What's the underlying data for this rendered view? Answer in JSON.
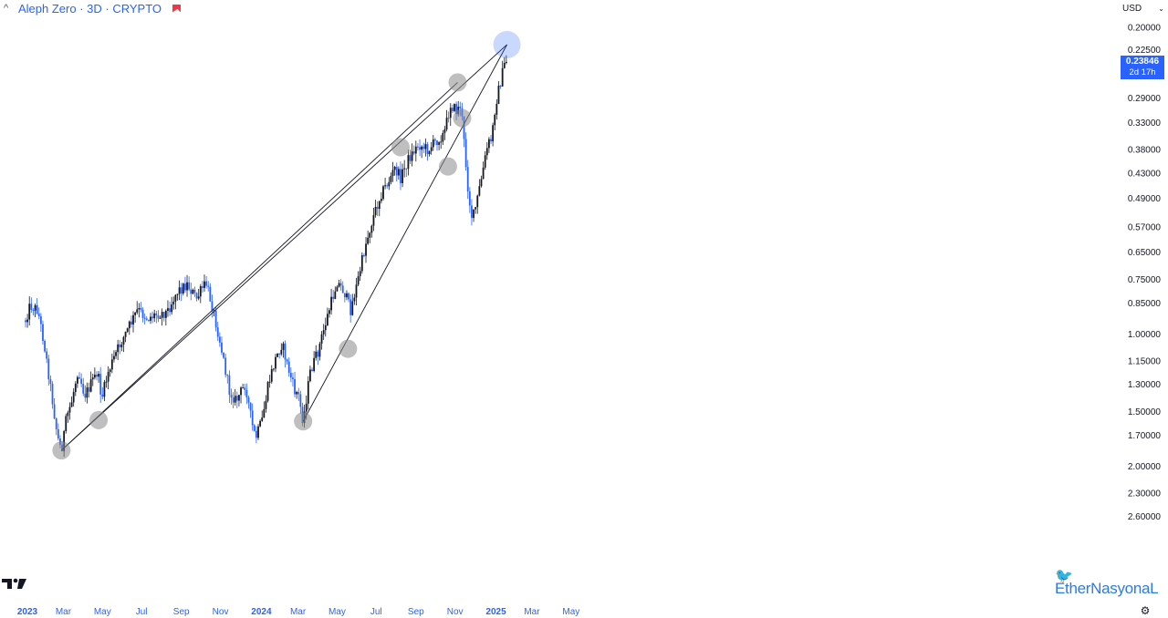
{
  "header": {
    "title": "Aleph Zero · 3D · CRYPTO",
    "currency": "USD",
    "current_price": "0.23846",
    "countdown": "2d 17h",
    "accent_color": "#2962ff",
    "flag_color": "#f23645"
  },
  "watermark": {
    "text": "EtherNasyonaL"
  },
  "chart_data": {
    "type": "candlestick",
    "title": "Aleph Zero · 3D · CRYPTO",
    "y_scale": "inverted-log",
    "y_ticks": [
      "0.20000",
      "0.22500",
      "0.29000",
      "0.33000",
      "0.38000",
      "0.43000",
      "0.49000",
      "0.57000",
      "0.65000",
      "0.75000",
      "0.85000",
      "1.00000",
      "1.15000",
      "1.30000",
      "1.50000",
      "1.70000",
      "2.00000",
      "2.30000",
      "2.60000"
    ],
    "x_ticks": [
      "2023",
      "Mar",
      "May",
      "Jul",
      "Sep",
      "Nov",
      "2024",
      "Mar",
      "May",
      "Jul",
      "Sep",
      "Nov",
      "2025",
      "Mar",
      "May"
    ],
    "x_ticks_bold": [
      "2023",
      "2024",
      "2025"
    ],
    "up_color": "#131722",
    "down_color": "#2962ff",
    "close_path": [
      [
        "2023-01-01",
        0.93
      ],
      [
        "2023-01-08",
        0.86
      ],
      [
        "2023-01-20",
        0.88
      ],
      [
        "2023-01-30",
        1.05
      ],
      [
        "2023-02-10",
        1.35
      ],
      [
        "2023-02-20",
        1.72
      ],
      [
        "2023-02-26",
        1.84
      ],
      [
        "2023-03-06",
        1.55
      ],
      [
        "2023-03-14",
        1.42
      ],
      [
        "2023-03-24",
        1.2
      ],
      [
        "2023-04-03",
        1.38
      ],
      [
        "2023-04-13",
        1.3
      ],
      [
        "2023-04-23",
        1.22
      ],
      [
        "2023-04-30",
        1.4
      ],
      [
        "2023-05-10",
        1.22
      ],
      [
        "2023-05-25",
        1.08
      ],
      [
        "2023-06-10",
        0.97
      ],
      [
        "2023-06-25",
        0.88
      ],
      [
        "2023-07-10",
        0.92
      ],
      [
        "2023-07-25",
        0.9
      ],
      [
        "2023-08-10",
        0.89
      ],
      [
        "2023-08-25",
        0.8
      ],
      [
        "2023-09-10",
        0.77
      ],
      [
        "2023-09-25",
        0.83
      ],
      [
        "2023-10-05",
        0.78
      ],
      [
        "2023-10-10",
        0.77
      ],
      [
        "2023-10-20",
        0.87
      ],
      [
        "2023-11-01",
        1.05
      ],
      [
        "2023-11-15",
        1.35
      ],
      [
        "2023-11-25",
        1.42
      ],
      [
        "2023-12-10",
        1.3
      ],
      [
        "2023-12-20",
        1.6
      ],
      [
        "2023-12-26",
        1.73
      ],
      [
        "2024-01-05",
        1.57
      ],
      [
        "2024-01-15",
        1.3
      ],
      [
        "2024-01-25",
        1.15
      ],
      [
        "2024-02-05",
        1.05
      ],
      [
        "2024-02-15",
        1.2
      ],
      [
        "2024-02-25",
        1.35
      ],
      [
        "2024-03-01",
        1.36
      ],
      [
        "2024-03-09",
        1.58
      ],
      [
        "2024-03-20",
        1.22
      ],
      [
        "2024-04-01",
        1.1
      ],
      [
        "2024-04-15",
        0.92
      ],
      [
        "2024-05-01",
        0.76
      ],
      [
        "2024-05-12",
        0.8
      ],
      [
        "2024-05-22",
        0.88
      ],
      [
        "2024-06-01",
        0.77
      ],
      [
        "2024-06-15",
        0.62
      ],
      [
        "2024-06-25",
        0.55
      ],
      [
        "2024-07-08",
        0.48
      ],
      [
        "2024-07-20",
        0.45
      ],
      [
        "2024-07-30",
        0.42
      ],
      [
        "2024-08-08",
        0.44
      ],
      [
        "2024-08-20",
        0.4
      ],
      [
        "2024-09-05",
        0.37
      ],
      [
        "2024-09-20",
        0.38
      ],
      [
        "2024-10-05",
        0.36
      ],
      [
        "2024-10-15",
        0.35
      ],
      [
        "2024-10-25",
        0.3
      ],
      [
        "2024-11-03",
        0.31
      ],
      [
        "2024-11-10",
        0.3
      ],
      [
        "2024-11-16",
        0.38
      ],
      [
        "2024-11-22",
        0.48
      ],
      [
        "2024-11-28",
        0.55
      ],
      [
        "2024-12-05",
        0.5
      ],
      [
        "2024-12-15",
        0.42
      ],
      [
        "2024-12-22",
        0.37
      ],
      [
        "2024-12-28",
        0.36
      ],
      [
        "2025-01-03",
        0.3
      ],
      [
        "2025-01-10",
        0.27
      ],
      [
        "2025-01-18",
        0.24
      ],
      [
        "2025-01-22",
        0.237
      ]
    ],
    "trendlines": [
      {
        "from": [
          "2023-02-26",
          1.84
        ],
        "to": [
          "2025-01-21",
          0.219
        ]
      },
      {
        "from": [
          "2023-02-26",
          1.84
        ],
        "to": [
          "2024-11-05",
          0.267
        ]
      },
      {
        "from": [
          "2024-03-09",
          1.58
        ],
        "to": [
          "2025-01-21",
          0.219
        ]
      }
    ],
    "touch_points": [
      [
        "2023-02-26",
        1.84
      ],
      [
        "2023-04-25",
        1.57
      ],
      [
        "2024-03-09",
        1.58
      ],
      [
        "2024-05-18",
        1.08
      ],
      [
        "2024-08-08",
        0.375
      ],
      [
        "2024-10-21",
        0.415
      ],
      [
        "2024-11-05",
        0.267
      ],
      [
        "2024-11-12",
        0.322
      ]
    ],
    "highlight_point": [
      "2025-01-21",
      0.219
    ]
  }
}
